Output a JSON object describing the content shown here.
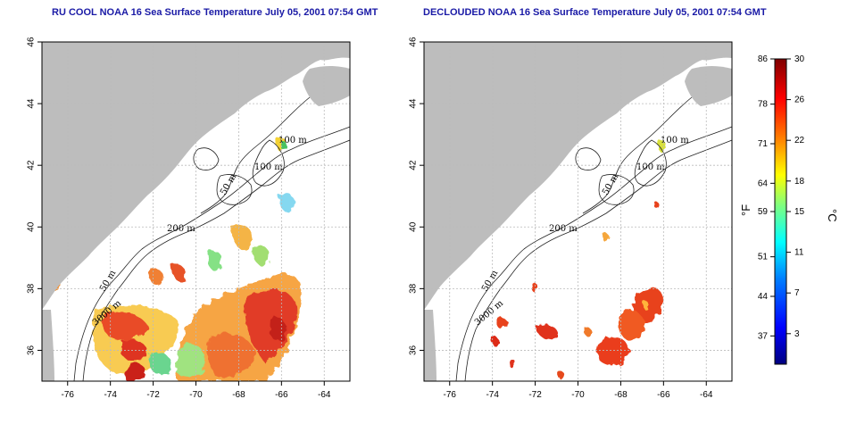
{
  "panels": [
    {
      "title": "RU COOL NOAA 16 Sea Surface Temperature July 05, 2001 07:54 GMT",
      "depth_labels": [
        "100 m",
        "100 m",
        "50 m",
        "200 m",
        "50 m",
        "3000 m"
      ]
    },
    {
      "title": "DECLOUDED NOAA 16 Sea Surface Temperature July 05, 2001 07:54 GMT",
      "depth_labels": [
        "100 m",
        "100 m",
        "50 m",
        "200 m",
        "50 m",
        "3000 m"
      ]
    }
  ],
  "axes": {
    "x_ticks": [
      "-76",
      "-74",
      "-72",
      "-70",
      "-68",
      "-66",
      "-64"
    ],
    "y_ticks": [
      "36",
      "38",
      "40",
      "42",
      "44",
      "46"
    ],
    "xlim": [
      -77.2,
      -62.8
    ],
    "ylim": [
      35,
      46
    ],
    "grid": true
  },
  "colorbar": {
    "fahrenheit_ticks": [
      "86",
      "78",
      "71",
      "64",
      "59",
      "51",
      "44",
      "37"
    ],
    "celsius_ticks": [
      "30",
      "26",
      "22",
      "18",
      "15",
      "11",
      "7",
      "3"
    ],
    "f_unit": "°F",
    "c_unit": "°C",
    "range_c": [
      0,
      30
    ],
    "colors": [
      "#00007f",
      "#0000ff",
      "#007fff",
      "#00ffff",
      "#7fff7f",
      "#ffff00",
      "#ff7f00",
      "#ff0000",
      "#7f0000"
    ]
  },
  "colors": {
    "land": "#bdbdbd",
    "title": "#1a1aa6",
    "frame": "#000000"
  }
}
